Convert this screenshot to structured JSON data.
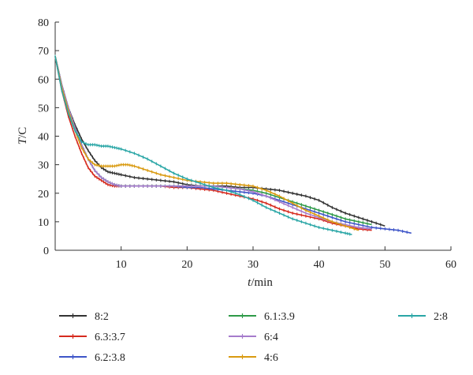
{
  "chart_data": {
    "type": "line",
    "xlabel_var": "t",
    "xlabel_unit": "/min",
    "ylabel_var": "T",
    "ylabel_unit": "/C",
    "xlim": [
      0,
      60
    ],
    "ylim": [
      0,
      80
    ],
    "x_ticks": [
      "10",
      "20",
      "30",
      "40",
      "50",
      "60"
    ],
    "y_ticks": [
      "0",
      "10",
      "20",
      "30",
      "40",
      "50",
      "60",
      "70",
      "80"
    ],
    "grid": false,
    "legend_position": "bottom",
    "series": [
      {
        "name": "8:2",
        "color": "#333333",
        "x": [
          0,
          1,
          2,
          3,
          4,
          5,
          6,
          7,
          8,
          9,
          10,
          12,
          14,
          16,
          18,
          20,
          22,
          24,
          26,
          28,
          30,
          32,
          34,
          36,
          38,
          40,
          42,
          44,
          46,
          48,
          50
        ],
        "y": [
          68,
          58,
          50,
          44,
          39,
          35,
          31.5,
          29,
          27.5,
          27,
          26.5,
          25.5,
          25,
          24.5,
          24,
          23,
          22.5,
          22.5,
          22.5,
          22,
          22,
          21.5,
          21,
          20,
          19,
          17.5,
          15,
          13,
          11.5,
          10,
          8.5
        ]
      },
      {
        "name": "6.3:3.7",
        "color": "#d62a1e",
        "x": [
          0,
          1,
          2,
          3,
          4,
          5,
          6,
          7,
          8,
          9,
          10,
          12,
          14,
          16,
          18,
          20,
          22,
          24,
          26,
          28,
          30,
          32,
          34,
          36,
          38,
          40,
          42,
          44,
          46,
          48
        ],
        "y": [
          68,
          56,
          47,
          40,
          34,
          29,
          26,
          24.5,
          23,
          22.5,
          22.5,
          22.5,
          22.5,
          22.5,
          22,
          22,
          21.5,
          21,
          20,
          19,
          18,
          16.5,
          14.5,
          13,
          12,
          11,
          9.5,
          8.5,
          7.5,
          7
        ]
      },
      {
        "name": "6.2:3.8",
        "color": "#3e55c8",
        "x": [
          0,
          1,
          2,
          3,
          4,
          5,
          6,
          7,
          8,
          9,
          10,
          12,
          14,
          16,
          18,
          20,
          22,
          24,
          26,
          28,
          30,
          32,
          34,
          36,
          38,
          40,
          42,
          44,
          46,
          48,
          50,
          52,
          54
        ],
        "y": [
          68,
          58,
          50,
          43,
          37,
          32,
          28,
          25.5,
          24,
          23,
          22.5,
          22.5,
          22.5,
          22.5,
          22.5,
          22,
          22,
          21.5,
          21,
          20.5,
          20,
          19,
          17.5,
          16,
          14.5,
          13,
          11.5,
          10,
          9,
          8,
          7.5,
          7,
          6
        ]
      },
      {
        "name": "6.1:3.9",
        "color": "#2e9a48",
        "x": [
          0,
          1,
          2,
          3,
          4,
          5,
          6,
          7,
          8,
          9,
          10,
          12,
          14,
          16,
          18,
          20,
          22,
          24,
          26,
          28,
          30,
          32,
          34,
          36,
          38,
          40,
          42,
          44,
          46,
          48
        ],
        "y": [
          68,
          58,
          50,
          43,
          37,
          32,
          28,
          25.5,
          24,
          23,
          22.5,
          22.5,
          22.5,
          22.5,
          22.5,
          22.5,
          22.5,
          22.5,
          22,
          21.5,
          21,
          20,
          18.5,
          17,
          15.5,
          14,
          12.5,
          11,
          10,
          9
        ]
      },
      {
        "name": "6:4",
        "color": "#a57bcc",
        "x": [
          0,
          1,
          2,
          3,
          4,
          5,
          6,
          7,
          8,
          9,
          10,
          12,
          14,
          16,
          18,
          20,
          22,
          24,
          26,
          28,
          30,
          32,
          34,
          36,
          38,
          40,
          42,
          44,
          46,
          48
        ],
        "y": [
          68,
          58,
          50,
          43,
          37,
          32,
          28,
          25.5,
          24,
          23,
          22.5,
          22.5,
          22.5,
          22.5,
          22.5,
          22.5,
          22.5,
          22.5,
          22,
          21.5,
          20.5,
          19,
          17,
          15,
          13,
          11.5,
          10,
          9,
          8,
          7.5
        ]
      },
      {
        "name": "4:6",
        "color": "#d99a10",
        "x": [
          0,
          1,
          2,
          3,
          4,
          5,
          6,
          7,
          8,
          9,
          10,
          11,
          12,
          14,
          16,
          18,
          20,
          22,
          24,
          26,
          28,
          30,
          32,
          34,
          36,
          38,
          40,
          42,
          44,
          46
        ],
        "y": [
          68,
          57,
          49,
          42,
          36,
          32,
          30,
          29.5,
          29.5,
          29.5,
          30,
          30,
          29.5,
          28,
          26.5,
          25.5,
          24.5,
          24,
          23.5,
          23.5,
          23,
          22.5,
          21,
          19,
          16.5,
          14,
          12,
          10,
          8.5,
          7
        ]
      },
      {
        "name": "2:8",
        "color": "#2aa6a6",
        "x": [
          0,
          1,
          2,
          3,
          4,
          5,
          6,
          7,
          8,
          9,
          10,
          12,
          14,
          16,
          18,
          20,
          22,
          24,
          26,
          28,
          30,
          32,
          34,
          36,
          38,
          40,
          42,
          44,
          45
        ],
        "y": [
          68,
          56,
          48,
          42,
          38,
          37,
          37,
          36.5,
          36.5,
          36,
          35.5,
          34,
          32,
          29.5,
          27,
          25,
          23.5,
          22,
          21,
          19.5,
          17.5,
          15,
          13,
          11,
          9.5,
          8,
          7,
          6,
          5.5
        ]
      }
    ]
  }
}
